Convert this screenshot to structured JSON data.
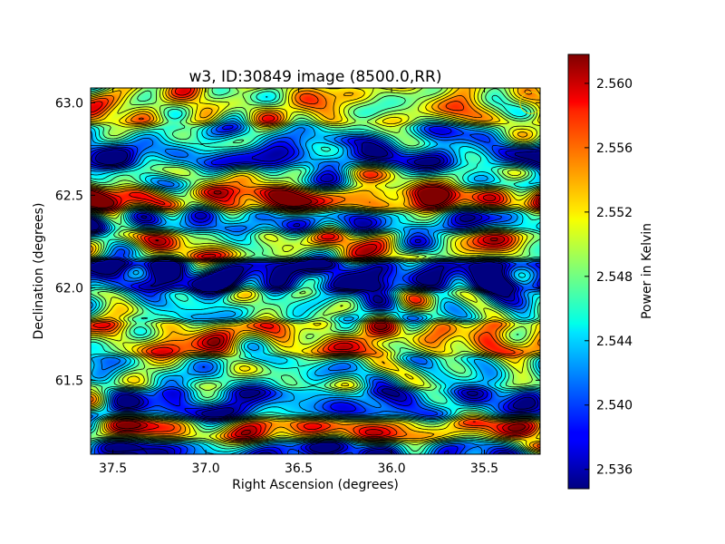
{
  "chart_data": {
    "type": "heatmap",
    "title": "w3, ID:30849 image (8500.0,RR)",
    "xlabel": "Right Ascension (degrees)",
    "ylabel": "Declination (degrees)",
    "xlim": [
      37.62,
      35.2
    ],
    "ylim": [
      61.1,
      63.08
    ],
    "xticks": [
      37.5,
      37.0,
      36.5,
      36.0,
      35.5
    ],
    "xtick_labels": [
      "37.5",
      "37.0",
      "36.5",
      "36.0",
      "35.5"
    ],
    "yticks": [
      61.5,
      62.0,
      62.5,
      63.0
    ],
    "ytick_labels": [
      "61.5",
      "62.0",
      "62.5",
      "63.0"
    ],
    "colormap": "jet",
    "contours": "black",
    "colorbar": {
      "label": "Power in Kelvin",
      "vmin": 2.5348,
      "vmax": 2.5618,
      "ticks": [
        2.536,
        2.54,
        2.544,
        2.548,
        2.552,
        2.556,
        2.56
      ],
      "tick_labels": [
        "2.536",
        "2.540",
        "2.544",
        "2.548",
        "2.552",
        "2.556",
        "2.560"
      ]
    },
    "bands": [
      {
        "dec": 62.97,
        "mean": 2.551
      },
      {
        "dec": 62.8,
        "mean": 2.545
      },
      {
        "dec": 62.71,
        "mean": 2.539
      },
      {
        "dec": 62.6,
        "mean": 2.548
      },
      {
        "dec": 62.48,
        "mean": 2.557
      },
      {
        "dec": 62.37,
        "mean": 2.541
      },
      {
        "dec": 62.24,
        "mean": 2.551
      },
      {
        "dec": 62.06,
        "mean": 2.537
      },
      {
        "dec": 61.92,
        "mean": 2.546
      },
      {
        "dec": 61.72,
        "mean": 2.553
      },
      {
        "dec": 61.55,
        "mean": 2.546
      },
      {
        "dec": 61.36,
        "mean": 2.541
      },
      {
        "dec": 61.23,
        "mean": 2.555
      },
      {
        "dec": 61.12,
        "mean": 2.539
      }
    ],
    "features": [
      {
        "ra": 35.29,
        "dec": 62.49,
        "value": 2.561
      },
      {
        "ra": 36.72,
        "dec": 62.48,
        "value": 2.559
      },
      {
        "ra": 36.02,
        "dec": 62.46,
        "value": 2.559
      },
      {
        "ra": 36.35,
        "dec": 61.23,
        "value": 2.559
      },
      {
        "ra": 35.22,
        "dec": 61.15,
        "value": 2.562
      },
      {
        "ra": 37.1,
        "dec": 62.04,
        "value": 2.535
      },
      {
        "ra": 37.35,
        "dec": 62.06,
        "value": 2.535
      },
      {
        "ra": 35.38,
        "dec": 62.03,
        "value": 2.535
      },
      {
        "ra": 36.22,
        "dec": 62.8,
        "value": 2.535
      },
      {
        "ra": 35.3,
        "dec": 62.72,
        "value": 2.535
      },
      {
        "ra": 36.95,
        "dec": 61.34,
        "value": 2.536
      },
      {
        "ra": 36.2,
        "dec": 61.11,
        "value": 2.537
      }
    ],
    "beam_marker": {
      "ra": 35.25,
      "dec": 63.0
    }
  }
}
